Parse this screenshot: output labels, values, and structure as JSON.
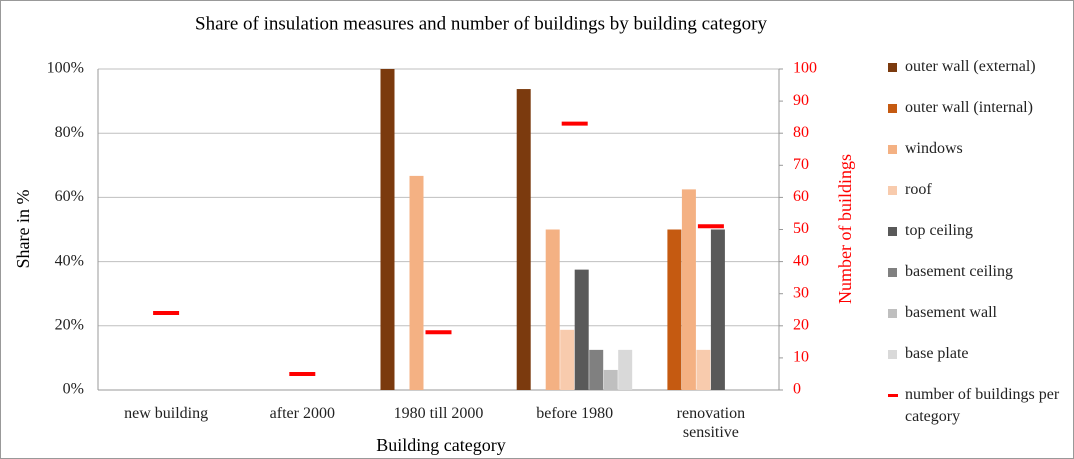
{
  "chart_data": {
    "type": "bar",
    "title": "Share of insulation measures and number of buildings by building category",
    "xlabel": "Building category",
    "ylabel": "Share in %",
    "y2label": "Number of buildings",
    "categories": [
      "new building",
      "after 2000",
      "1980 till 2000",
      "before 1980",
      "renovation sensitive"
    ],
    "ylim": [
      0,
      100
    ],
    "yticks": [
      {
        "value": 0,
        "label": "0%"
      },
      {
        "value": 20,
        "label": "20%"
      },
      {
        "value": 40,
        "label": "40%"
      },
      {
        "value": 60,
        "label": "60%"
      },
      {
        "value": 80,
        "label": "80%"
      },
      {
        "value": 100,
        "label": "100%"
      }
    ],
    "y2lim": [
      0,
      100
    ],
    "y2ticks": [
      0,
      10,
      20,
      30,
      40,
      50,
      60,
      70,
      80,
      90,
      100
    ],
    "grid": true,
    "legend": "right",
    "series": [
      {
        "name": "outer wall (external)",
        "color": "#7b3a0e",
        "values": [
          0,
          0,
          100,
          93.75,
          0
        ]
      },
      {
        "name": "outer wall (internal)",
        "color": "#c55a11",
        "values": [
          0,
          0,
          0,
          0,
          50
        ]
      },
      {
        "name": "windows",
        "color": "#f4b183",
        "values": [
          0,
          0,
          66.7,
          50,
          62.5
        ]
      },
      {
        "name": "roof",
        "color": "#f8cbad",
        "values": [
          0,
          0,
          0,
          18.75,
          12.5
        ]
      },
      {
        "name": "top ceiling",
        "color": "#595959",
        "values": [
          0,
          0,
          0,
          37.5,
          50
        ]
      },
      {
        "name": "basement ceiling",
        "color": "#808080",
        "values": [
          0,
          0,
          0,
          12.5,
          0
        ]
      },
      {
        "name": "basement wall",
        "color": "#bfbfbf",
        "values": [
          0,
          0,
          0,
          6.25,
          0
        ]
      },
      {
        "name": "base plate",
        "color": "#d9d9d9",
        "values": [
          0,
          0,
          0,
          12.5,
          0
        ]
      },
      {
        "name": "number of buildings per category",
        "color": "#ff0000",
        "axis": "y2",
        "values": [
          24,
          5,
          18,
          83,
          51
        ]
      }
    ]
  }
}
